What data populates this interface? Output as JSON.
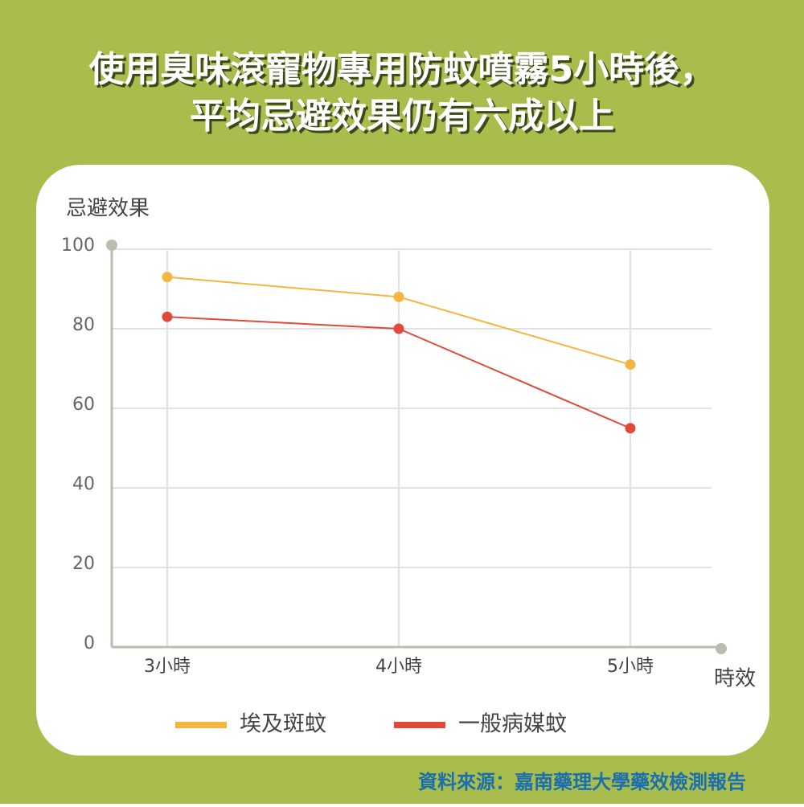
{
  "chart_data": {
    "type": "line",
    "title": [
      "使用臭味滾寵物專用防蚊噴霧5小時後，",
      "平均忌避效果仍有六成以上"
    ],
    "y_label": "忌避效果",
    "x_label": "時效",
    "categories": [
      "3小時",
      "4小時",
      "5小時"
    ],
    "series": [
      {
        "name": "埃及斑蚊",
        "color": "#f4b63f",
        "values": [
          93,
          88,
          71
        ]
      },
      {
        "name": "一般病媒蚊",
        "color": "#e04a3a",
        "values": [
          83,
          80,
          55
        ]
      }
    ],
    "ylim": [
      0,
      100
    ],
    "yticks": [
      0,
      20,
      40,
      60,
      80,
      100
    ],
    "grid": true,
    "source": "資料來源：嘉南藥理大學藥效檢測報告"
  }
}
